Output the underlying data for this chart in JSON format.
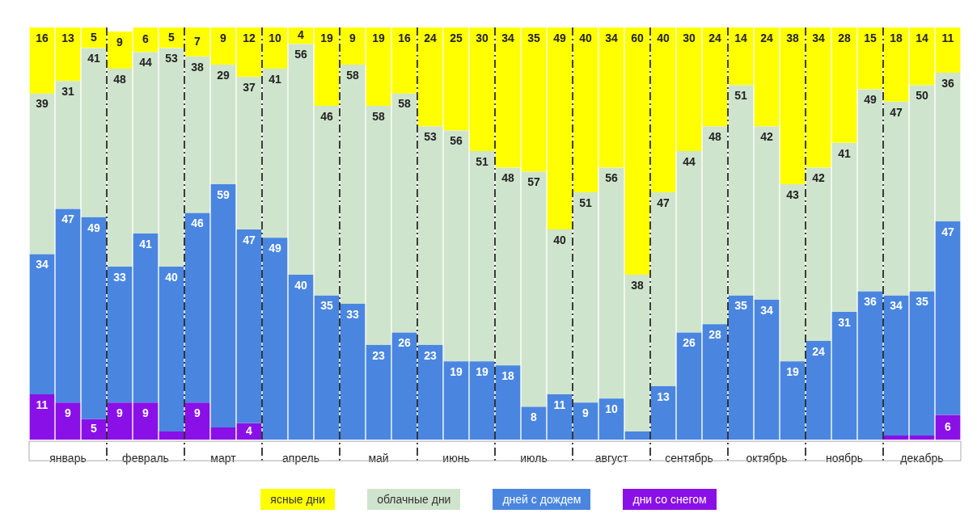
{
  "chart_data": {
    "type": "bar",
    "stacked": true,
    "categories": [
      null,
      "январь",
      null,
      null,
      "февраль",
      null,
      null,
      "март",
      null,
      null,
      "апрель",
      null,
      null,
      "май",
      null,
      null,
      "июнь",
      null,
      null,
      "июль",
      null,
      null,
      "август",
      null,
      null,
      "сентябрь",
      null,
      null,
      "октябрь",
      null,
      null,
      "ноябрь",
      null,
      null,
      "декабрь",
      null
    ],
    "series": [
      {
        "name": "дни со снегом",
        "color": "#8a10e8",
        "values": [
          11,
          9,
          5,
          9,
          9,
          2,
          9,
          3,
          4,
          0,
          0,
          0,
          0,
          0,
          0,
          0,
          0,
          0,
          0,
          0,
          0,
          0,
          0,
          0,
          0,
          0,
          0,
          0,
          0,
          0,
          0,
          0,
          0,
          1,
          1,
          6
        ],
        "value_labels": [
          "11",
          "9",
          "5",
          "9",
          "9",
          null,
          "9",
          null,
          "4",
          null,
          null,
          null,
          null,
          null,
          null,
          null,
          null,
          null,
          null,
          null,
          null,
          null,
          null,
          null,
          null,
          null,
          null,
          null,
          null,
          null,
          null,
          null,
          null,
          null,
          null,
          "6"
        ]
      },
      {
        "name": "дней с дождем",
        "color": "#4a86e0",
        "values": [
          34,
          47,
          49,
          33,
          41,
          40,
          46,
          59,
          47,
          49,
          40,
          35,
          33,
          23,
          26,
          23,
          19,
          19,
          18,
          8,
          11,
          9,
          10,
          2,
          13,
          26,
          28,
          35,
          34,
          19,
          24,
          31,
          36,
          34,
          35,
          47
        ],
        "value_labels": [
          "34",
          "47",
          "49",
          "33",
          "41",
          "40",
          "46",
          "59",
          "47",
          "49",
          "40",
          "35",
          "33",
          "23",
          "26",
          "23",
          "19",
          "19",
          "18",
          "8",
          "11",
          "9",
          "10",
          null,
          "13",
          "26",
          "28",
          "35",
          "34",
          "19",
          "24",
          "31",
          "36",
          "34",
          "35",
          "47"
        ]
      },
      {
        "name": "облачные дни",
        "color": "#cfe4cc",
        "values": [
          39,
          31,
          41,
          48,
          44,
          53,
          38,
          29,
          37,
          41,
          56,
          46,
          58,
          58,
          58,
          53,
          56,
          51,
          48,
          57,
          40,
          51,
          56,
          38,
          47,
          44,
          48,
          51,
          42,
          43,
          42,
          41,
          49,
          47,
          50,
          36
        ],
        "value_labels": [
          "39",
          "31",
          "41",
          "48",
          "44",
          "53",
          "38",
          "29",
          "37",
          "41",
          "56",
          "46",
          "58",
          "58",
          "58",
          "53",
          "56",
          "51",
          "48",
          "57",
          "40",
          "51",
          "56",
          "38",
          "47",
          "44",
          "48",
          "51",
          "42",
          "43",
          "42",
          "41",
          "49",
          "47",
          "50",
          "36"
        ]
      },
      {
        "name": "ясные дни",
        "color": "#ffff00",
        "values": [
          16,
          13,
          5,
          9,
          6,
          5,
          7,
          9,
          12,
          10,
          4,
          19,
          9,
          19,
          16,
          24,
          25,
          30,
          34,
          35,
          49,
          40,
          34,
          60,
          40,
          30,
          24,
          14,
          24,
          38,
          34,
          28,
          15,
          18,
          14,
          11
        ],
        "value_labels": [
          "16",
          "13",
          "5",
          "9",
          "6",
          "5",
          "7",
          "9",
          "12",
          "10",
          "4",
          "19",
          "9",
          "19",
          "16",
          "24",
          "25",
          "30",
          "34",
          "35",
          "49",
          "40",
          "34",
          "60",
          "40",
          "30",
          "24",
          "14",
          "24",
          "38",
          "34",
          "28",
          "15",
          "18",
          "14",
          "11"
        ]
      }
    ],
    "ylim": [
      0,
      100
    ],
    "tick_labels": "x",
    "grid": "x",
    "legend": "bottom"
  }
}
